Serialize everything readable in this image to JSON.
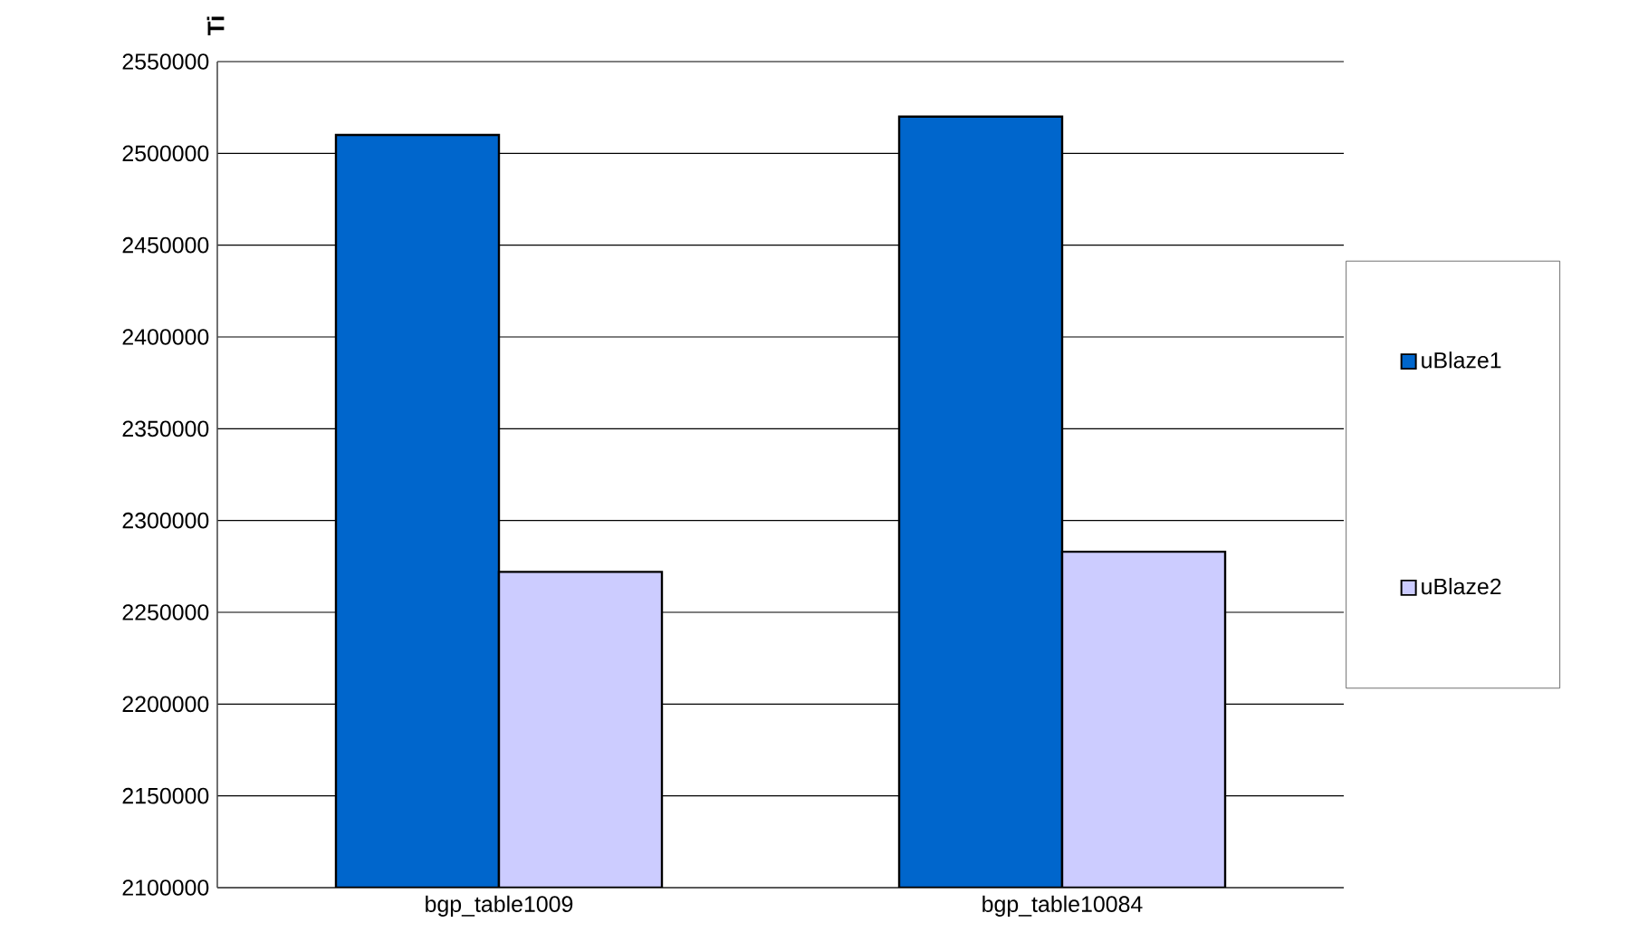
{
  "chart_data": {
    "type": "bar",
    "ylabel": "Ti",
    "categories": [
      "bgp_table1009",
      "bgp_table10084"
    ],
    "series": [
      {
        "name": "uBlaze1",
        "color": "#0066cc",
        "values": [
          2510000,
          2520000
        ]
      },
      {
        "name": "uBlaze2",
        "color": "#ccccff",
        "values": [
          2272000,
          2283000
        ]
      }
    ],
    "ylim": [
      2100000,
      2550000
    ],
    "yticks": [
      2100000,
      2150000,
      2200000,
      2250000,
      2300000,
      2350000,
      2400000,
      2450000,
      2500000,
      2550000
    ],
    "grid": "y",
    "legend": "right"
  }
}
